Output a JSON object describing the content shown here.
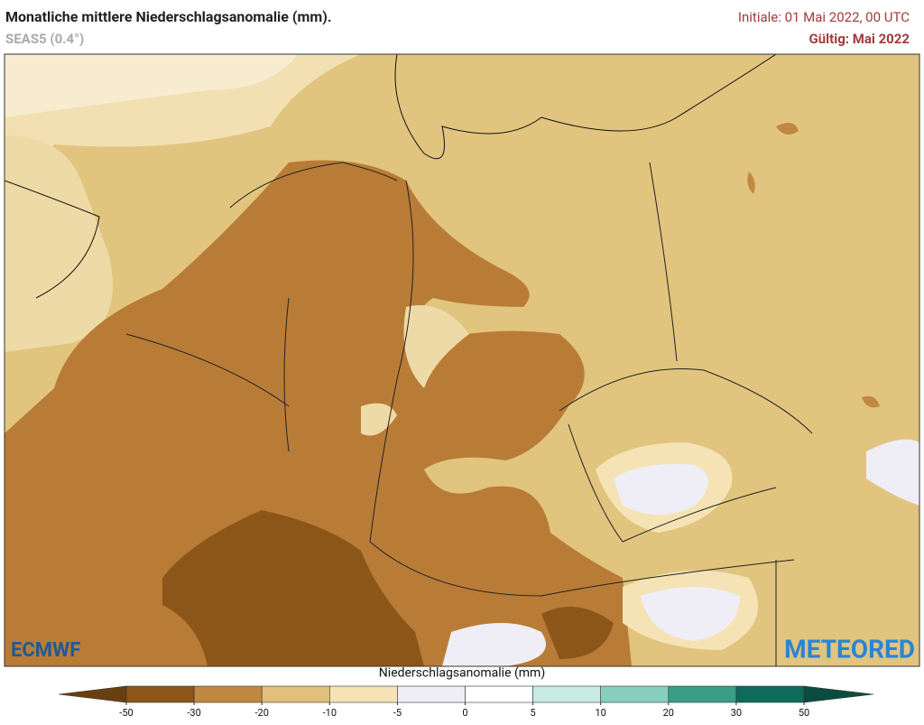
{
  "header": {
    "title": "Monatliche mittlere Niederschlagsanomalie (mm).",
    "subtitle": "SEAS5 (0.4°)",
    "initial": "Initiale: 01 Mai 2022, 00 UTC",
    "valid": "Gültig: Mai 2022"
  },
  "colorbar": {
    "title": "Niederschlagsanomalie (mm)",
    "ticks": [
      -50,
      -30,
      -20,
      -10,
      -5,
      0,
      5,
      10,
      20,
      30,
      50
    ],
    "colors": [
      "#6a3f10",
      "#8b5618",
      "#c08840",
      "#e0c07a",
      "#f5e3b5",
      "#efeef7",
      "#ffffff",
      "#c9ebe3",
      "#88cfbd",
      "#3b9c87",
      "#0e6b5a",
      "#0a4d3f"
    ]
  },
  "logos": {
    "left": "ECMWF",
    "right": "METEORED"
  }
}
